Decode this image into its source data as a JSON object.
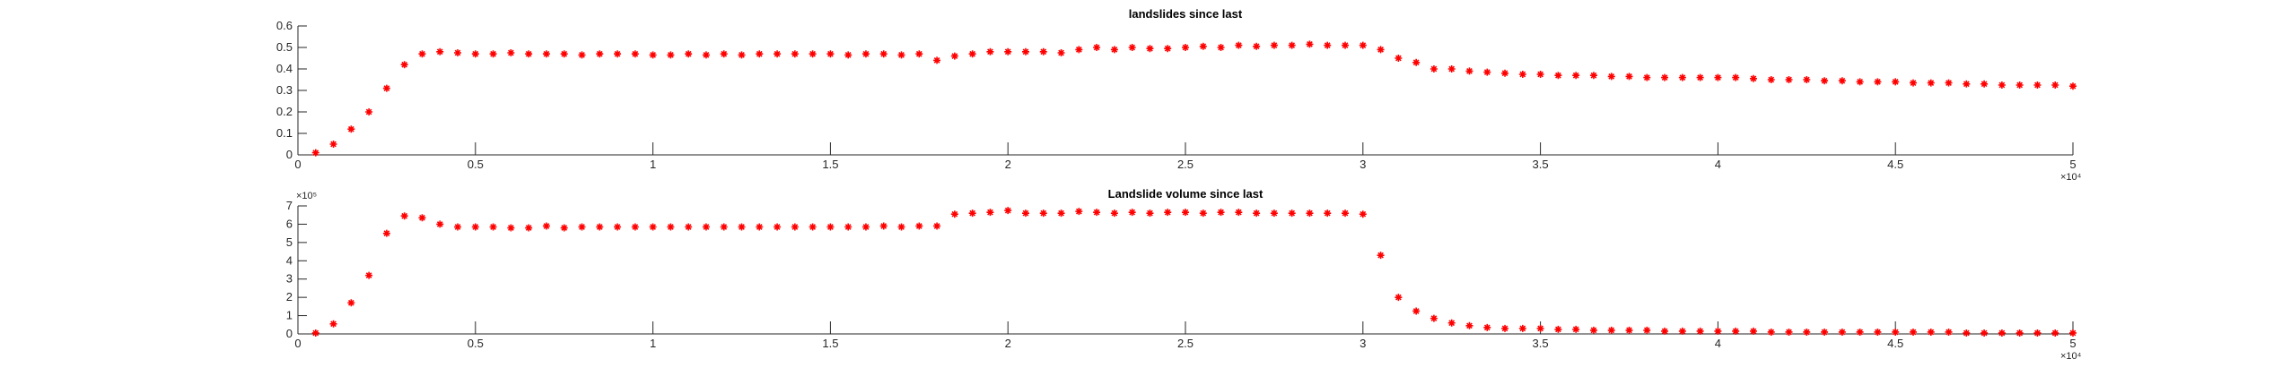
{
  "chart_data": [
    {
      "type": "scatter",
      "title": "landslides since last",
      "color": "#ff0000",
      "xlim": [
        0,
        5
      ],
      "xticks": [
        0,
        0.5,
        1,
        1.5,
        2,
        2.5,
        3,
        3.5,
        4,
        4.5,
        5
      ],
      "x_multiplier": "×10⁴",
      "ylim": [
        0,
        0.6
      ],
      "yticks": [
        0,
        0.1,
        0.2,
        0.3,
        0.4,
        0.5,
        0.6
      ],
      "x": [
        0.05,
        0.1,
        0.15,
        0.2,
        0.25,
        0.3,
        0.35,
        0.4,
        0.45,
        0.5,
        0.55,
        0.6,
        0.65,
        0.7,
        0.75,
        0.8,
        0.85,
        0.9,
        0.95,
        1,
        1.05,
        1.1,
        1.15,
        1.2,
        1.25,
        1.3,
        1.35,
        1.4,
        1.45,
        1.5,
        1.55,
        1.6,
        1.65,
        1.7,
        1.75,
        1.8,
        1.85,
        1.9,
        1.95,
        2,
        2.05,
        2.1,
        2.15,
        2.2,
        2.25,
        2.3,
        2.35,
        2.4,
        2.45,
        2.5,
        2.55,
        2.6,
        2.65,
        2.7,
        2.75,
        2.8,
        2.85,
        2.9,
        2.95,
        3,
        3.05,
        3.1,
        3.15,
        3.2,
        3.25,
        3.3,
        3.35,
        3.4,
        3.45,
        3.5,
        3.55,
        3.6,
        3.65,
        3.7,
        3.75,
        3.8,
        3.85,
        3.9,
        3.95,
        4,
        4.05,
        4.1,
        4.15,
        4.2,
        4.25,
        4.3,
        4.35,
        4.4,
        4.45,
        4.5,
        4.55,
        4.6,
        4.65,
        4.7,
        4.75,
        4.8,
        4.85,
        4.9,
        4.95,
        5
      ],
      "values": [
        0.01,
        0.05,
        0.12,
        0.2,
        0.31,
        0.42,
        0.47,
        0.48,
        0.475,
        0.47,
        0.47,
        0.475,
        0.47,
        0.47,
        0.47,
        0.465,
        0.47,
        0.47,
        0.47,
        0.465,
        0.465,
        0.47,
        0.465,
        0.47,
        0.465,
        0.47,
        0.47,
        0.47,
        0.47,
        0.47,
        0.465,
        0.47,
        0.47,
        0.465,
        0.47,
        0.44,
        0.46,
        0.47,
        0.48,
        0.48,
        0.48,
        0.48,
        0.475,
        0.49,
        0.5,
        0.49,
        0.5,
        0.495,
        0.495,
        0.5,
        0.505,
        0.5,
        0.51,
        0.505,
        0.51,
        0.51,
        0.515,
        0.51,
        0.51,
        0.51,
        0.49,
        0.45,
        0.43,
        0.4,
        0.4,
        0.39,
        0.385,
        0.38,
        0.375,
        0.375,
        0.37,
        0.37,
        0.37,
        0.365,
        0.365,
        0.36,
        0.36,
        0.36,
        0.36,
        0.36,
        0.36,
        0.355,
        0.35,
        0.35,
        0.35,
        0.345,
        0.345,
        0.34,
        0.34,
        0.34,
        0.335,
        0.335,
        0.335,
        0.33,
        0.33,
        0.325,
        0.325,
        0.325,
        0.325,
        0.32
      ]
    },
    {
      "type": "scatter",
      "title": "Landslide volume since last",
      "color": "#ff0000",
      "xlim": [
        0,
        5
      ],
      "xticks": [
        0,
        0.5,
        1,
        1.5,
        2,
        2.5,
        3,
        3.5,
        4,
        4.5,
        5
      ],
      "x_multiplier": "×10⁴",
      "ylim": [
        0,
        7
      ],
      "yticks": [
        0,
        1,
        2,
        3,
        4,
        5,
        6,
        7
      ],
      "y_multiplier": "×10⁵",
      "x": [
        0.05,
        0.1,
        0.15,
        0.2,
        0.25,
        0.3,
        0.35,
        0.4,
        0.45,
        0.5,
        0.55,
        0.6,
        0.65,
        0.7,
        0.75,
        0.8,
        0.85,
        0.9,
        0.95,
        1,
        1.05,
        1.1,
        1.15,
        1.2,
        1.25,
        1.3,
        1.35,
        1.4,
        1.45,
        1.5,
        1.55,
        1.6,
        1.65,
        1.7,
        1.75,
        1.8,
        1.85,
        1.9,
        1.95,
        2,
        2.05,
        2.1,
        2.15,
        2.2,
        2.25,
        2.3,
        2.35,
        2.4,
        2.45,
        2.5,
        2.55,
        2.6,
        2.65,
        2.7,
        2.75,
        2.8,
        2.85,
        2.9,
        2.95,
        3,
        3.05,
        3.1,
        3.15,
        3.2,
        3.25,
        3.3,
        3.35,
        3.4,
        3.45,
        3.5,
        3.55,
        3.6,
        3.65,
        3.7,
        3.75,
        3.8,
        3.85,
        3.9,
        3.95,
        4,
        4.05,
        4.1,
        4.15,
        4.2,
        4.25,
        4.3,
        4.35,
        4.4,
        4.45,
        4.5,
        4.55,
        4.6,
        4.65,
        4.7,
        4.75,
        4.8,
        4.85,
        4.9,
        4.95,
        5
      ],
      "values": [
        0.05,
        0.55,
        1.7,
        3.2,
        5.5,
        6.45,
        6.35,
        6.0,
        5.85,
        5.85,
        5.85,
        5.8,
        5.8,
        5.9,
        5.8,
        5.85,
        5.85,
        5.85,
        5.85,
        5.85,
        5.85,
        5.85,
        5.85,
        5.85,
        5.85,
        5.85,
        5.85,
        5.85,
        5.85,
        5.85,
        5.85,
        5.85,
        5.9,
        5.85,
        5.9,
        5.9,
        6.55,
        6.6,
        6.65,
        6.75,
        6.6,
        6.6,
        6.6,
        6.7,
        6.65,
        6.6,
        6.65,
        6.6,
        6.65,
        6.65,
        6.6,
        6.65,
        6.65,
        6.6,
        6.6,
        6.6,
        6.6,
        6.6,
        6.6,
        6.55,
        4.3,
        2.0,
        1.25,
        0.85,
        0.6,
        0.45,
        0.35,
        0.3,
        0.3,
        0.3,
        0.25,
        0.25,
        0.2,
        0.2,
        0.2,
        0.2,
        0.15,
        0.15,
        0.15,
        0.15,
        0.15,
        0.15,
        0.1,
        0.1,
        0.1,
        0.1,
        0.1,
        0.1,
        0.1,
        0.1,
        0.1,
        0.1,
        0.1,
        0.05,
        0.05,
        0.05,
        0.05,
        0.05,
        0.05,
        0.05
      ]
    }
  ]
}
